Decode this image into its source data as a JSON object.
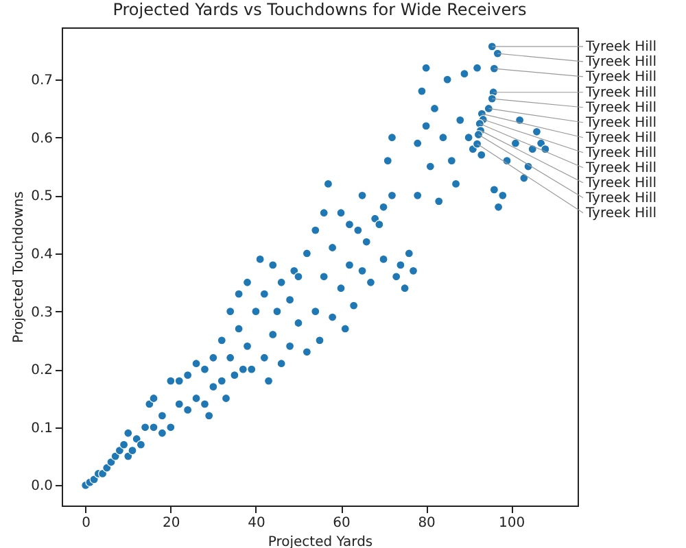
{
  "chart_data": {
    "type": "scatter",
    "title": "Projected Yards vs Touchdowns for Wide Receivers",
    "xlabel": "Projected Yards",
    "ylabel": "Projected Touchdowns",
    "xlim": [
      -5.6,
      115.6
    ],
    "ylim": [
      -0.035,
      0.79
    ],
    "xticks": [
      0,
      20,
      40,
      60,
      80,
      100
    ],
    "yticks": [
      {
        "value": 0,
        "label": "0.0"
      },
      {
        "value": 0.1,
        "label": "0.1"
      },
      {
        "value": 0.2,
        "label": "0.2"
      },
      {
        "value": 0.3,
        "label": "0.3"
      },
      {
        "value": 0.4,
        "label": "0.4"
      },
      {
        "value": 0.5,
        "label": "0.5"
      },
      {
        "value": 0.6,
        "label": "0.6"
      },
      {
        "value": 0.7,
        "label": "0.7"
      }
    ],
    "grid": false,
    "marker": "circle",
    "series": [
      {
        "color": "#1f77b4",
        "x": [
          0,
          1,
          2,
          3,
          4,
          5,
          6,
          7,
          8,
          9,
          10,
          10,
          11,
          12,
          13,
          14,
          15,
          16,
          16,
          18,
          18,
          20,
          20,
          22,
          22,
          24,
          24,
          26,
          26,
          28,
          28,
          29,
          30,
          30,
          32,
          32,
          33,
          34,
          34,
          35,
          36,
          36,
          37,
          38,
          38,
          39,
          40,
          41,
          42,
          42,
          43,
          44,
          44,
          45,
          46,
          46,
          48,
          48,
          49,
          50,
          50,
          52,
          52,
          54,
          54,
          55,
          56,
          56,
          57,
          58,
          58,
          60,
          60,
          61,
          62,
          62,
          63,
          64,
          65,
          65,
          66,
          67,
          68,
          69,
          70,
          70,
          71,
          72,
          72,
          73,
          74,
          75,
          76,
          77,
          78,
          78,
          79,
          80,
          80,
          81,
          82,
          83,
          84,
          85,
          86,
          87,
          88,
          89,
          90,
          91,
          92,
          93,
          96,
          97,
          98,
          99,
          101,
          102,
          103,
          104,
          105,
          106,
          107,
          108,
          95.5,
          96.8,
          96,
          95.8,
          95.5,
          94.7,
          93.1,
          93.4,
          92.6,
          92.8,
          92.3,
          92
        ],
        "values": [
          0,
          0.005,
          0.01,
          0.02,
          0.02,
          0.03,
          0.04,
          0.05,
          0.06,
          0.07,
          0.05,
          0.09,
          0.06,
          0.08,
          0.07,
          0.1,
          0.14,
          0.15,
          0.1,
          0.12,
          0.09,
          0.18,
          0.1,
          0.14,
          0.18,
          0.19,
          0.13,
          0.15,
          0.21,
          0.2,
          0.14,
          0.12,
          0.22,
          0.17,
          0.25,
          0.18,
          0.15,
          0.3,
          0.22,
          0.19,
          0.33,
          0.27,
          0.2,
          0.35,
          0.24,
          0.2,
          0.3,
          0.39,
          0.22,
          0.33,
          0.18,
          0.38,
          0.26,
          0.3,
          0.21,
          0.35,
          0.32,
          0.24,
          0.37,
          0.28,
          0.36,
          0.23,
          0.4,
          0.44,
          0.3,
          0.25,
          0.47,
          0.36,
          0.52,
          0.41,
          0.29,
          0.47,
          0.34,
          0.27,
          0.45,
          0.38,
          0.31,
          0.44,
          0.5,
          0.37,
          0.42,
          0.35,
          0.46,
          0.45,
          0.39,
          0.48,
          0.56,
          0.6,
          0.5,
          0.36,
          0.38,
          0.34,
          0.4,
          0.37,
          0.5,
          0.59,
          0.68,
          0.72,
          0.62,
          0.55,
          0.65,
          0.49,
          0.6,
          0.7,
          0.56,
          0.52,
          0.63,
          0.71,
          0.6,
          0.58,
          0.72,
          0.57,
          0.51,
          0.48,
          0.5,
          0.56,
          0.59,
          0.63,
          0.53,
          0.55,
          0.58,
          0.61,
          0.59,
          0.58,
          0.757,
          0.745,
          0.719,
          0.678,
          0.667,
          0.65,
          0.641,
          0.631,
          0.624,
          0.612,
          0.605,
          0.589
        ]
      }
    ],
    "annotations": [
      {
        "text": "Tyreek Hill",
        "x": 95.5,
        "y": 0.757
      },
      {
        "text": "Tyreek Hill",
        "x": 96.8,
        "y": 0.745
      },
      {
        "text": "Tyreek Hill",
        "x": 96,
        "y": 0.719
      },
      {
        "text": "Tyreek Hill",
        "x": 95.8,
        "y": 0.678
      },
      {
        "text": "Tyreek Hill",
        "x": 95.5,
        "y": 0.667
      },
      {
        "text": "Tyreek Hill",
        "x": 94.7,
        "y": 0.65
      },
      {
        "text": "Tyreek Hill",
        "x": 93.1,
        "y": 0.641
      },
      {
        "text": "Tyreek Hill",
        "x": 93.4,
        "y": 0.631
      },
      {
        "text": "Tyreek Hill",
        "x": 92.6,
        "y": 0.624
      },
      {
        "text": "Tyreek Hill",
        "x": 92.8,
        "y": 0.612
      },
      {
        "text": "Tyreek Hill",
        "x": 92.3,
        "y": 0.605
      },
      {
        "text": "Tyreek Hill",
        "x": 92,
        "y": 0.589
      }
    ]
  }
}
